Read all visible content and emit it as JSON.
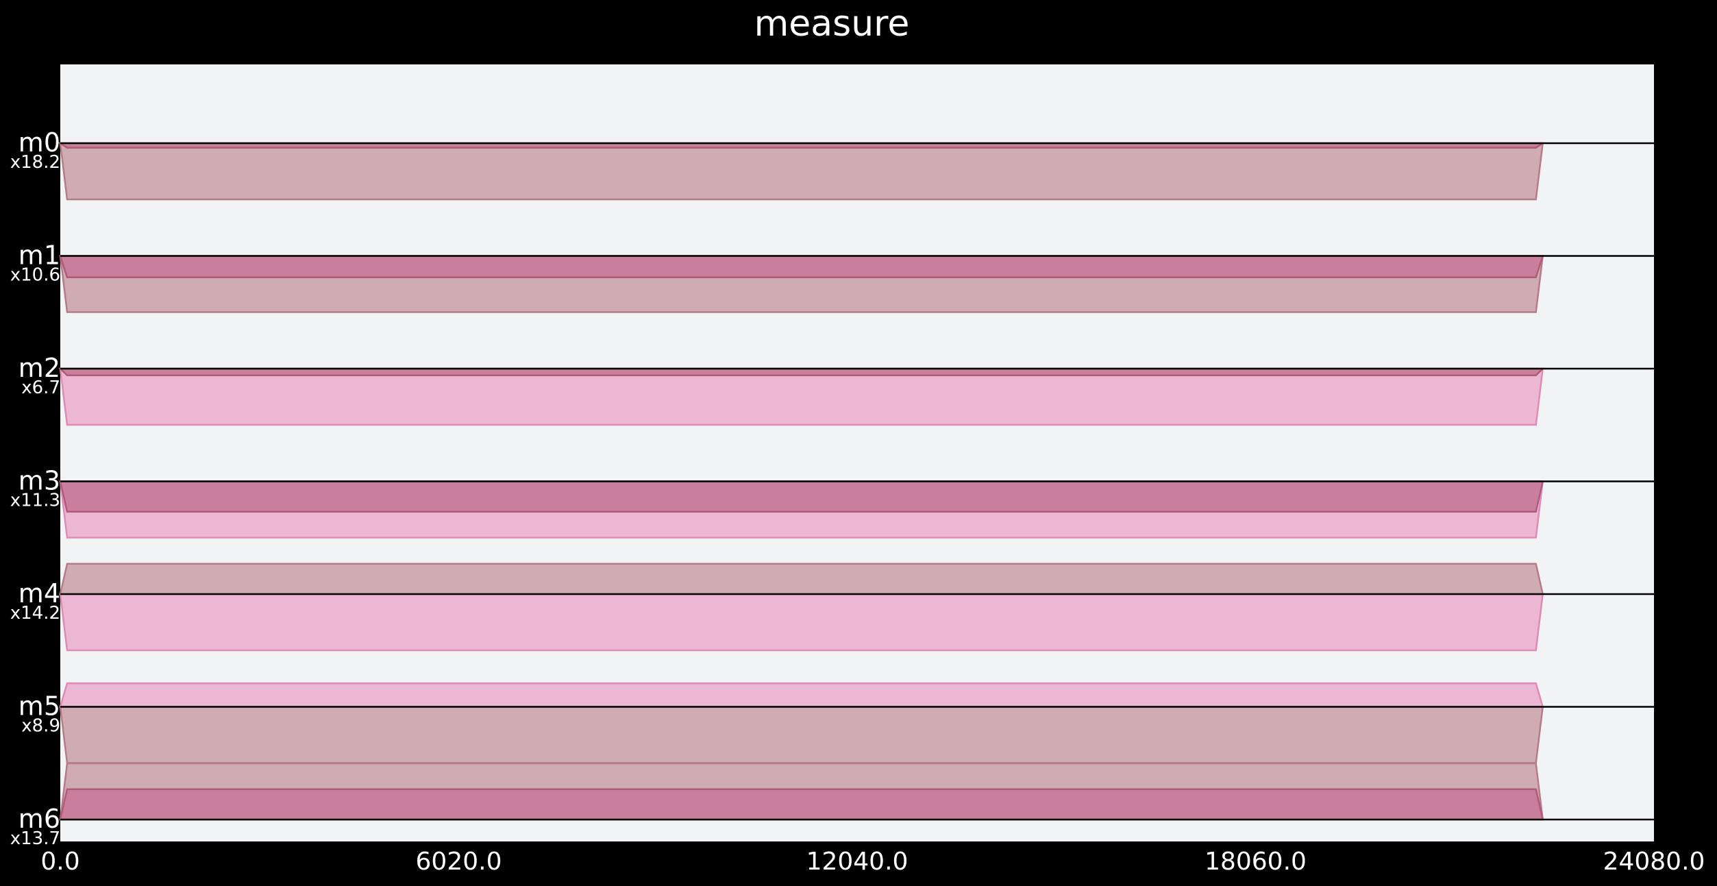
{
  "chart_data": {
    "type": "area",
    "title": "measure",
    "background": "#000000",
    "plot_background": "#f2f3f5",
    "xlim": [
      0,
      24080
    ],
    "x_ticks": [
      "0.0",
      "6020.0",
      "12040.0",
      "18060.0",
      "24080.0"
    ],
    "x_tick_values": [
      0,
      6020,
      12040,
      18060,
      24080
    ],
    "lines": [
      {
        "name": "m0",
        "scale": "x18.2"
      },
      {
        "name": "m1",
        "scale": "x10.6"
      },
      {
        "name": "m2",
        "scale": "x6.7"
      },
      {
        "name": "m3",
        "scale": "x11.3"
      },
      {
        "name": "m4",
        "scale": "x14.2"
      },
      {
        "name": "m5",
        "scale": "x8.9"
      },
      {
        "name": "m6",
        "scale": "x13.7"
      }
    ],
    "pulse_start": 0,
    "pulse_end": 22400,
    "channel_spacing": 1.0,
    "pulses": [
      {
        "line": 0,
        "amplitude": -0.5,
        "color": "#cca8b0",
        "edge": "#b67a89"
      },
      {
        "line": 0,
        "amplitude": -0.04,
        "color": "#c87c9a",
        "edge": "#b05a7a"
      },
      {
        "line": 1,
        "amplitude": -0.5,
        "color": "#cca8b0",
        "edge": "#b67a89"
      },
      {
        "line": 1,
        "amplitude": -0.19,
        "color": "#c87c9a",
        "edge": "#b05a7a"
      },
      {
        "line": 2,
        "amplitude": -0.5,
        "color": "#ebb3d0",
        "edge": "#df8ab7"
      },
      {
        "line": 2,
        "amplitude": -0.06,
        "color": "#c87c9a",
        "edge": "#b05a7a"
      },
      {
        "line": 3,
        "amplitude": -0.5,
        "color": "#ebb3d0",
        "edge": "#df8ab7"
      },
      {
        "line": 3,
        "amplitude": -0.27,
        "color": "#c87c9a",
        "edge": "#b05a7a"
      },
      {
        "line": 4,
        "amplitude": 0.27,
        "color": "#cca8b0",
        "edge": "#b67a89"
      },
      {
        "line": 4,
        "amplitude": -0.5,
        "color": "#ebb3d0",
        "edge": "#df8ab7"
      },
      {
        "line": 5,
        "amplitude": 0.21,
        "color": "#ebb3d0",
        "edge": "#df8ab7"
      },
      {
        "line": 5,
        "amplitude": -0.5,
        "color": "#cca8b0",
        "edge": "#b67a89"
      },
      {
        "line": 6,
        "amplitude": 0.5,
        "color": "#cca8b0",
        "edge": "#b67a89"
      },
      {
        "line": 6,
        "amplitude": 0.27,
        "color": "#c87c9a",
        "edge": "#b05a7a"
      }
    ]
  }
}
